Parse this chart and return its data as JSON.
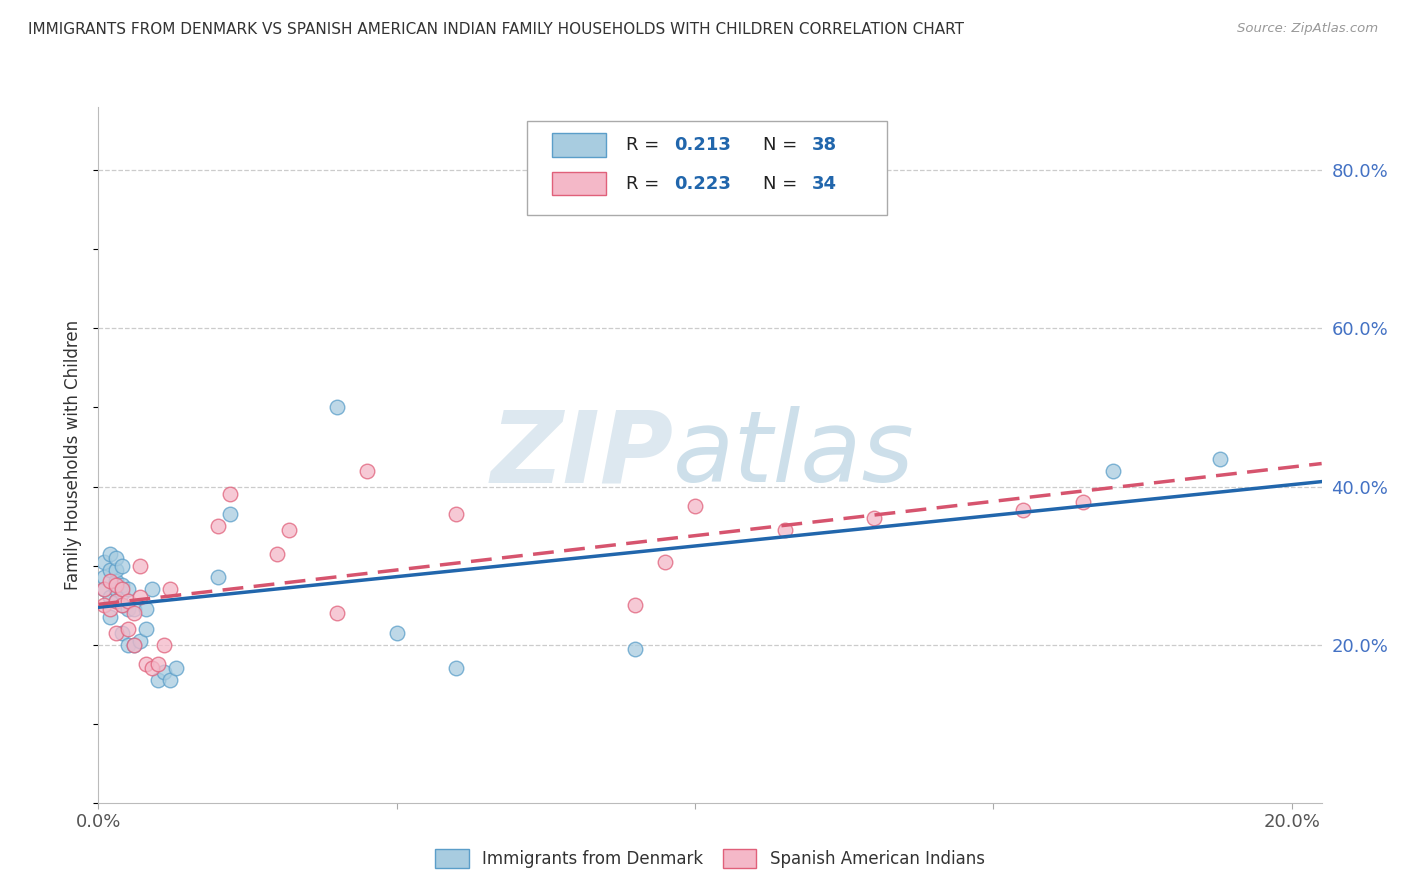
{
  "title": "IMMIGRANTS FROM DENMARK VS SPANISH AMERICAN INDIAN FAMILY HOUSEHOLDS WITH CHILDREN CORRELATION CHART",
  "source": "Source: ZipAtlas.com",
  "ylabel": "Family Households with Children",
  "xlim": [
    0.0,
    0.205
  ],
  "ylim": [
    0.0,
    0.88
  ],
  "x_ticks": [
    0.0,
    0.05,
    0.1,
    0.15,
    0.2
  ],
  "x_tick_labels": [
    "0.0%",
    "",
    "",
    "",
    "20.0%"
  ],
  "y_ticks_right": [
    0.2,
    0.4,
    0.6,
    0.8
  ],
  "y_tick_labels_right": [
    "20.0%",
    "40.0%",
    "60.0%",
    "80.0%"
  ],
  "color_blue": "#a8cce0",
  "color_pink": "#f4b8c8",
  "color_blue_edge": "#5b9ec9",
  "color_pink_edge": "#e0607a",
  "color_blue_line": "#2166ac",
  "color_pink_line": "#d6546e",
  "watermark_zip_color": "#dde8f0",
  "watermark_atlas_color": "#c8dce8",
  "legend_label1": "Immigrants from Denmark",
  "legend_label2": "Spanish American Indians",
  "blue_x": [
    0.001,
    0.001,
    0.001,
    0.002,
    0.002,
    0.002,
    0.002,
    0.003,
    0.003,
    0.003,
    0.003,
    0.003,
    0.004,
    0.004,
    0.004,
    0.004,
    0.004,
    0.005,
    0.005,
    0.005,
    0.006,
    0.006,
    0.007,
    0.008,
    0.008,
    0.009,
    0.01,
    0.011,
    0.012,
    0.013,
    0.02,
    0.022,
    0.04,
    0.05,
    0.06,
    0.09,
    0.17,
    0.188
  ],
  "blue_y": [
    0.27,
    0.285,
    0.305,
    0.235,
    0.26,
    0.295,
    0.315,
    0.255,
    0.27,
    0.28,
    0.295,
    0.31,
    0.215,
    0.25,
    0.265,
    0.275,
    0.3,
    0.2,
    0.245,
    0.27,
    0.2,
    0.245,
    0.205,
    0.22,
    0.245,
    0.27,
    0.155,
    0.165,
    0.155,
    0.17,
    0.285,
    0.365,
    0.5,
    0.215,
    0.17,
    0.195,
    0.42,
    0.435
  ],
  "pink_x": [
    0.001,
    0.001,
    0.002,
    0.002,
    0.003,
    0.003,
    0.003,
    0.004,
    0.004,
    0.005,
    0.005,
    0.006,
    0.006,
    0.007,
    0.007,
    0.008,
    0.009,
    0.01,
    0.011,
    0.012,
    0.02,
    0.022,
    0.03,
    0.032,
    0.04,
    0.045,
    0.06,
    0.09,
    0.095,
    0.1,
    0.115,
    0.13,
    0.155,
    0.165
  ],
  "pink_y": [
    0.25,
    0.27,
    0.245,
    0.28,
    0.215,
    0.255,
    0.275,
    0.25,
    0.27,
    0.22,
    0.255,
    0.2,
    0.24,
    0.26,
    0.3,
    0.175,
    0.17,
    0.175,
    0.2,
    0.27,
    0.35,
    0.39,
    0.315,
    0.345,
    0.24,
    0.42,
    0.365,
    0.25,
    0.305,
    0.375,
    0.345,
    0.36,
    0.37,
    0.38
  ]
}
